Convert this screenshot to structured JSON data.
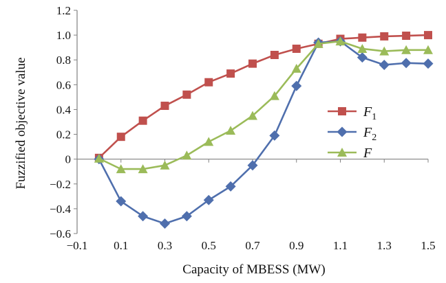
{
  "chart_data": {
    "type": "line",
    "xlabel": "Capacity of MBESS (MW)",
    "ylabel": "Fuzzified objective value",
    "xlim": [
      -0.1,
      1.5
    ],
    "ylim": [
      -0.6,
      1.2
    ],
    "x_ticks": [
      "−0.1",
      "0.1",
      "0.3",
      "0.5",
      "0.7",
      "0.9",
      "1.1",
      "1.3",
      "1.5"
    ],
    "x_tick_values": [
      -0.1,
      0.1,
      0.3,
      0.5,
      0.7,
      0.9,
      1.1,
      1.3,
      1.5
    ],
    "y_ticks": [
      "−0.6",
      "−0.4",
      "−0.2",
      "0",
      "0.2",
      "0.4",
      "0.6",
      "0.8",
      "1.0",
      "1.2"
    ],
    "y_tick_values": [
      -0.6,
      -0.4,
      -0.2,
      0,
      0.2,
      0.4,
      0.6,
      0.8,
      1.0,
      1.2
    ],
    "grid": false,
    "legend_position": "right-middle",
    "x": [
      0,
      0.1,
      0.2,
      0.3,
      0.4,
      0.5,
      0.6,
      0.7,
      0.8,
      0.9,
      1.0,
      1.1,
      1.2,
      1.3,
      1.4,
      1.5
    ],
    "series": [
      {
        "name": "F1",
        "label_main": "F",
        "label_sub": "1",
        "color": "#c0504d",
        "marker": "square",
        "values": [
          0.01,
          0.18,
          0.31,
          0.43,
          0.52,
          0.62,
          0.69,
          0.77,
          0.84,
          0.89,
          0.93,
          0.97,
          0.98,
          0.99,
          0.995,
          1.0
        ]
      },
      {
        "name": "F2",
        "label_main": "F",
        "label_sub": "2",
        "color": "#4f6fad",
        "marker": "diamond",
        "values": [
          0.0,
          -0.34,
          -0.46,
          -0.52,
          -0.46,
          -0.33,
          -0.22,
          -0.05,
          0.19,
          0.59,
          0.94,
          0.95,
          0.82,
          0.76,
          0.775,
          0.77
        ]
      },
      {
        "name": "F",
        "label_main": "F",
        "label_sub": "",
        "color": "#9bbb59",
        "marker": "triangle",
        "values": [
          0.005,
          -0.08,
          -0.08,
          -0.05,
          0.03,
          0.14,
          0.23,
          0.35,
          0.51,
          0.73,
          0.93,
          0.95,
          0.89,
          0.87,
          0.88,
          0.88
        ]
      }
    ]
  }
}
